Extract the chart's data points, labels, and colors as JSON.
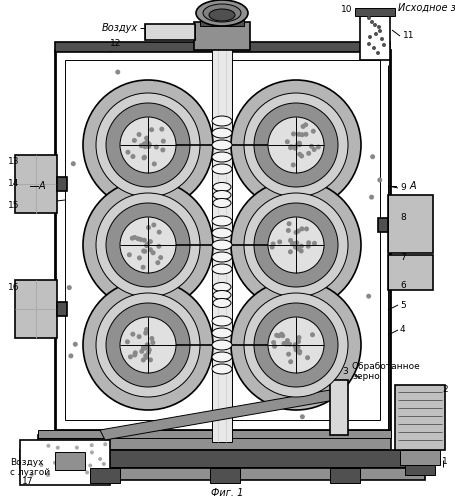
{
  "title": "Фиг. 1",
  "vozduh_top": "Воздух",
  "ishodnoe_zerno": "Исходное зерно",
  "obrabotannoe_zerno": "Обработанное\nзерно",
  "vozduh_s_luzgoy": "Воздух\nс лузгой",
  "bg_color": "#ffffff",
  "lc": "#000000",
  "gray_light": "#c0c0c0",
  "gray_mid": "#909090",
  "gray_dark": "#505050",
  "gray_box": "#808080",
  "gray_inner": "#b0b0b0"
}
